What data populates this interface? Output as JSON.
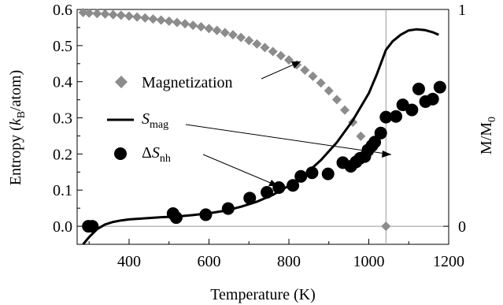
{
  "chart_data": {
    "type": "scatter",
    "xlabel": "Temperature (K)",
    "ylabel_parts": [
      "Entropy (",
      "k",
      "B",
      "/atom)"
    ],
    "y2label_parts": [
      "M/M",
      "0"
    ],
    "xlim": [
      270,
      1200
    ],
    "ylim": [
      -0.05,
      0.6
    ],
    "x_ticks": [
      "400",
      "600",
      "800",
      "1000",
      "1200"
    ],
    "y_ticks": [
      "0.0",
      "0.1",
      "0.2",
      "0.3",
      "0.4",
      "0.5",
      "0.6"
    ],
    "y2_ticks": [
      "0",
      "1"
    ],
    "vertical_marker_x": 1043,
    "grid": false,
    "legend_position": "left, inside",
    "series": [
      {
        "name": "Magnetization",
        "label_parts": [
          "Magnetization"
        ],
        "marker": "diamond",
        "color": "#8c8c8c",
        "axis": "right",
        "x": [
          285,
          300,
          320,
          340,
          360,
          380,
          400,
          420,
          440,
          460,
          480,
          500,
          520,
          540,
          560,
          580,
          600,
          620,
          640,
          660,
          680,
          700,
          720,
          740,
          760,
          780,
          800,
          820,
          840,
          860,
          880,
          900,
          920,
          940,
          960,
          980,
          1000,
          1043
        ],
        "y": [
          0.986,
          0.983,
          0.981,
          0.979,
          0.976,
          0.973,
          0.969,
          0.965,
          0.961,
          0.956,
          0.951,
          0.946,
          0.94,
          0.934,
          0.927,
          0.92,
          0.912,
          0.903,
          0.893,
          0.883,
          0.871,
          0.857,
          0.841,
          0.824,
          0.806,
          0.787,
          0.767,
          0.745,
          0.72,
          0.692,
          0.661,
          0.625,
          0.584,
          0.536,
          0.48,
          0.415,
          0.333,
          0.0
        ]
      },
      {
        "name": "S_mag",
        "label_parts": [
          "S",
          "mag"
        ],
        "marker": "line",
        "color": "#000000",
        "axis": "left",
        "x": [
          285,
          300,
          320,
          340,
          360,
          380,
          400,
          440,
          480,
          520,
          560,
          600,
          640,
          680,
          720,
          760,
          800,
          840,
          880,
          920,
          960,
          1000,
          1020,
          1043,
          1060,
          1080,
          1100,
          1120,
          1140,
          1160,
          1175
        ],
        "y": [
          -0.05,
          -0.03,
          -0.008,
          0.005,
          0.012,
          0.016,
          0.019,
          0.022,
          0.025,
          0.027,
          0.031,
          0.036,
          0.043,
          0.054,
          0.068,
          0.087,
          0.112,
          0.143,
          0.183,
          0.232,
          0.293,
          0.368,
          0.42,
          0.488,
          0.512,
          0.53,
          0.542,
          0.545,
          0.543,
          0.537,
          0.53
        ]
      },
      {
        "name": "ΔS_nh",
        "label_parts": [
          "Δ",
          "S",
          "nh"
        ],
        "marker": "circle",
        "color": "#000000",
        "axis": "left",
        "x": [
          298,
          308,
          510,
          518,
          592,
          648,
          702,
          745,
          775,
          810,
          830,
          858,
          898,
          935,
          955,
          968,
          978,
          990,
          998,
          1008,
          1015,
          1030,
          1043,
          1068,
          1085,
          1108,
          1125,
          1142,
          1160,
          1178
        ],
        "y": [
          0.0,
          0.0,
          0.035,
          0.024,
          0.032,
          0.049,
          0.078,
          0.094,
          0.107,
          0.113,
          0.138,
          0.148,
          0.145,
          0.176,
          0.166,
          0.178,
          0.188,
          0.193,
          0.211,
          0.223,
          0.233,
          0.258,
          0.302,
          0.304,
          0.336,
          0.322,
          0.38,
          0.345,
          0.352,
          0.385
        ]
      }
    ]
  }
}
